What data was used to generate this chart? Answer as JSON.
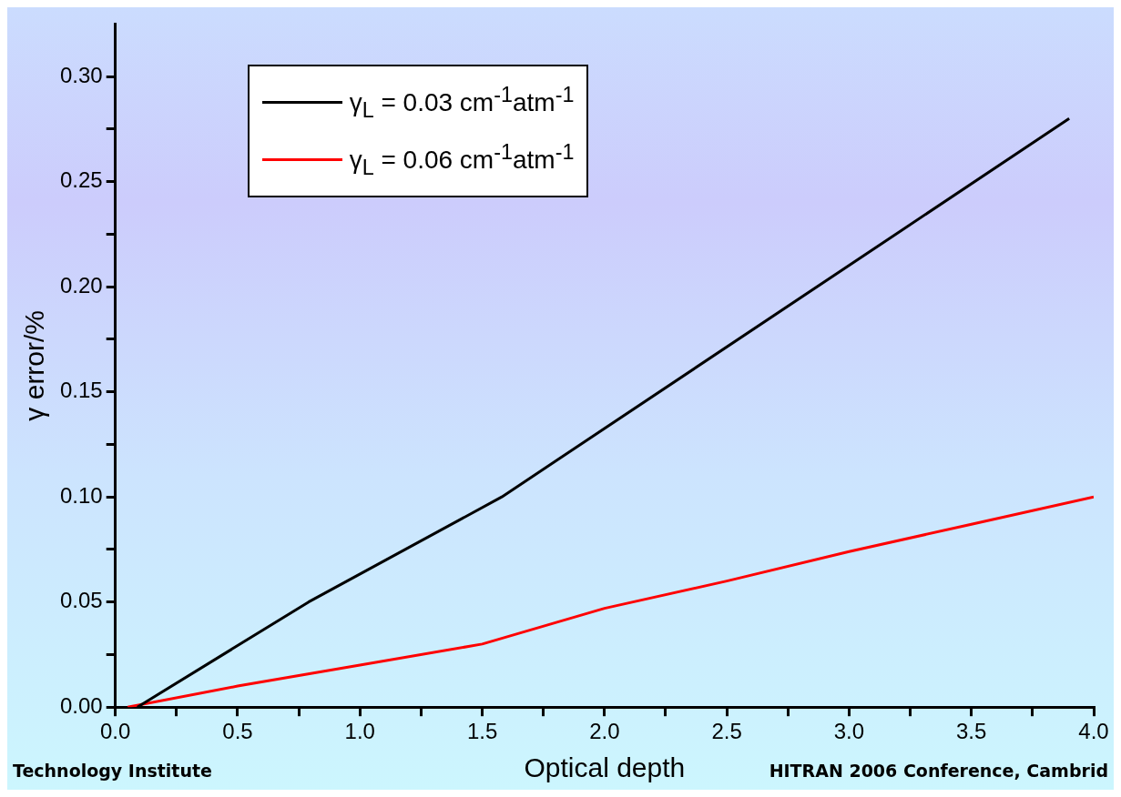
{
  "chart_data": {
    "type": "line",
    "xlabel": "Optical depth",
    "ylabel": "γ error/%",
    "series": [
      {
        "name": "γ$_{L}$ = 0.03 cm$^{-1}$atm$^{-1}$",
        "color": "#000000",
        "x": [
          0.09,
          0.79,
          1.58,
          3.9
        ],
        "values": [
          0,
          0.05,
          0.1,
          0.28
        ]
      },
      {
        "name": "γ$_{L}$ = 0.06 cm$^{-1}$atm$^{-1}$",
        "color": "#ff0000",
        "x": [
          0.05,
          0.5,
          1.0,
          1.5,
          2.0,
          2.5,
          3.0,
          3.5,
          4.0
        ],
        "values": [
          0,
          0.01,
          0.02,
          0.03,
          0.047,
          0.06,
          0.074,
          0.087,
          0.1
        ]
      }
    ],
    "xlim": [
      0,
      4.0
    ],
    "xticks": [
      {
        "value": 0,
        "label": "0.0"
      },
      {
        "value": 0.25,
        "label": null
      },
      {
        "value": 0.5,
        "label": "0.5"
      },
      {
        "value": 0.75,
        "label": null
      },
      {
        "value": 1,
        "label": "1.0"
      },
      {
        "value": 1.25,
        "label": null
      },
      {
        "value": 1.5,
        "label": "1.5"
      },
      {
        "value": 1.75,
        "label": null
      },
      {
        "value": 2,
        "label": "2.0"
      },
      {
        "value": 2.25,
        "label": null
      },
      {
        "value": 2.5,
        "label": "2.5"
      },
      {
        "value": 2.75,
        "label": null
      },
      {
        "value": 3,
        "label": "3.0"
      },
      {
        "value": 3.25,
        "label": null
      },
      {
        "value": 3.5,
        "label": "3.5"
      },
      {
        "value": 3.75,
        "label": null
      },
      {
        "value": 4,
        "label": "4.0"
      }
    ],
    "ylim": [
      0,
      0.325
    ],
    "yticks": [
      {
        "value": 0,
        "label": "0.00"
      },
      {
        "value": 0.025,
        "label": null
      },
      {
        "value": 0.05,
        "label": "0.05"
      },
      {
        "value": 0.075,
        "label": null
      },
      {
        "value": 0.1,
        "label": "0.10"
      },
      {
        "value": 0.125,
        "label": null
      },
      {
        "value": 0.15,
        "label": "0.15"
      },
      {
        "value": 0.175,
        "label": null
      },
      {
        "value": 0.2,
        "label": "0.20"
      },
      {
        "value": 0.225,
        "label": null
      },
      {
        "value": 0.25,
        "label": "0.25"
      },
      {
        "value": 0.275,
        "label": null
      },
      {
        "value": 0.3,
        "label": "0.30"
      }
    ],
    "grid": false,
    "legend": "top left",
    "marker": "none",
    "line_style": "solid",
    "annotations": [
      "Technology Institute",
      "HITRAN 2006 Conference, Cambrid"
    ]
  }
}
